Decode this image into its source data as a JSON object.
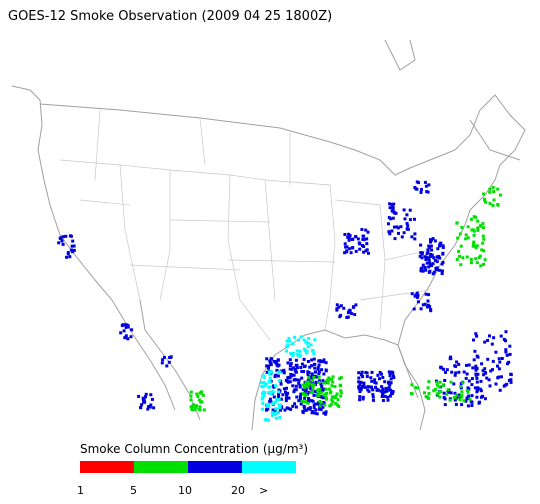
{
  "title": "GOES-12 Smoke Observation (2009 04 25  1800Z)",
  "legend": {
    "title": "Smoke Column Concentration (μg/m³)",
    "colors": [
      "#ff0000",
      "#00e000",
      "#0000e0",
      "#00ffff"
    ],
    "labels": [
      "1",
      "5",
      "10",
      "20",
      ">"
    ]
  }
}
